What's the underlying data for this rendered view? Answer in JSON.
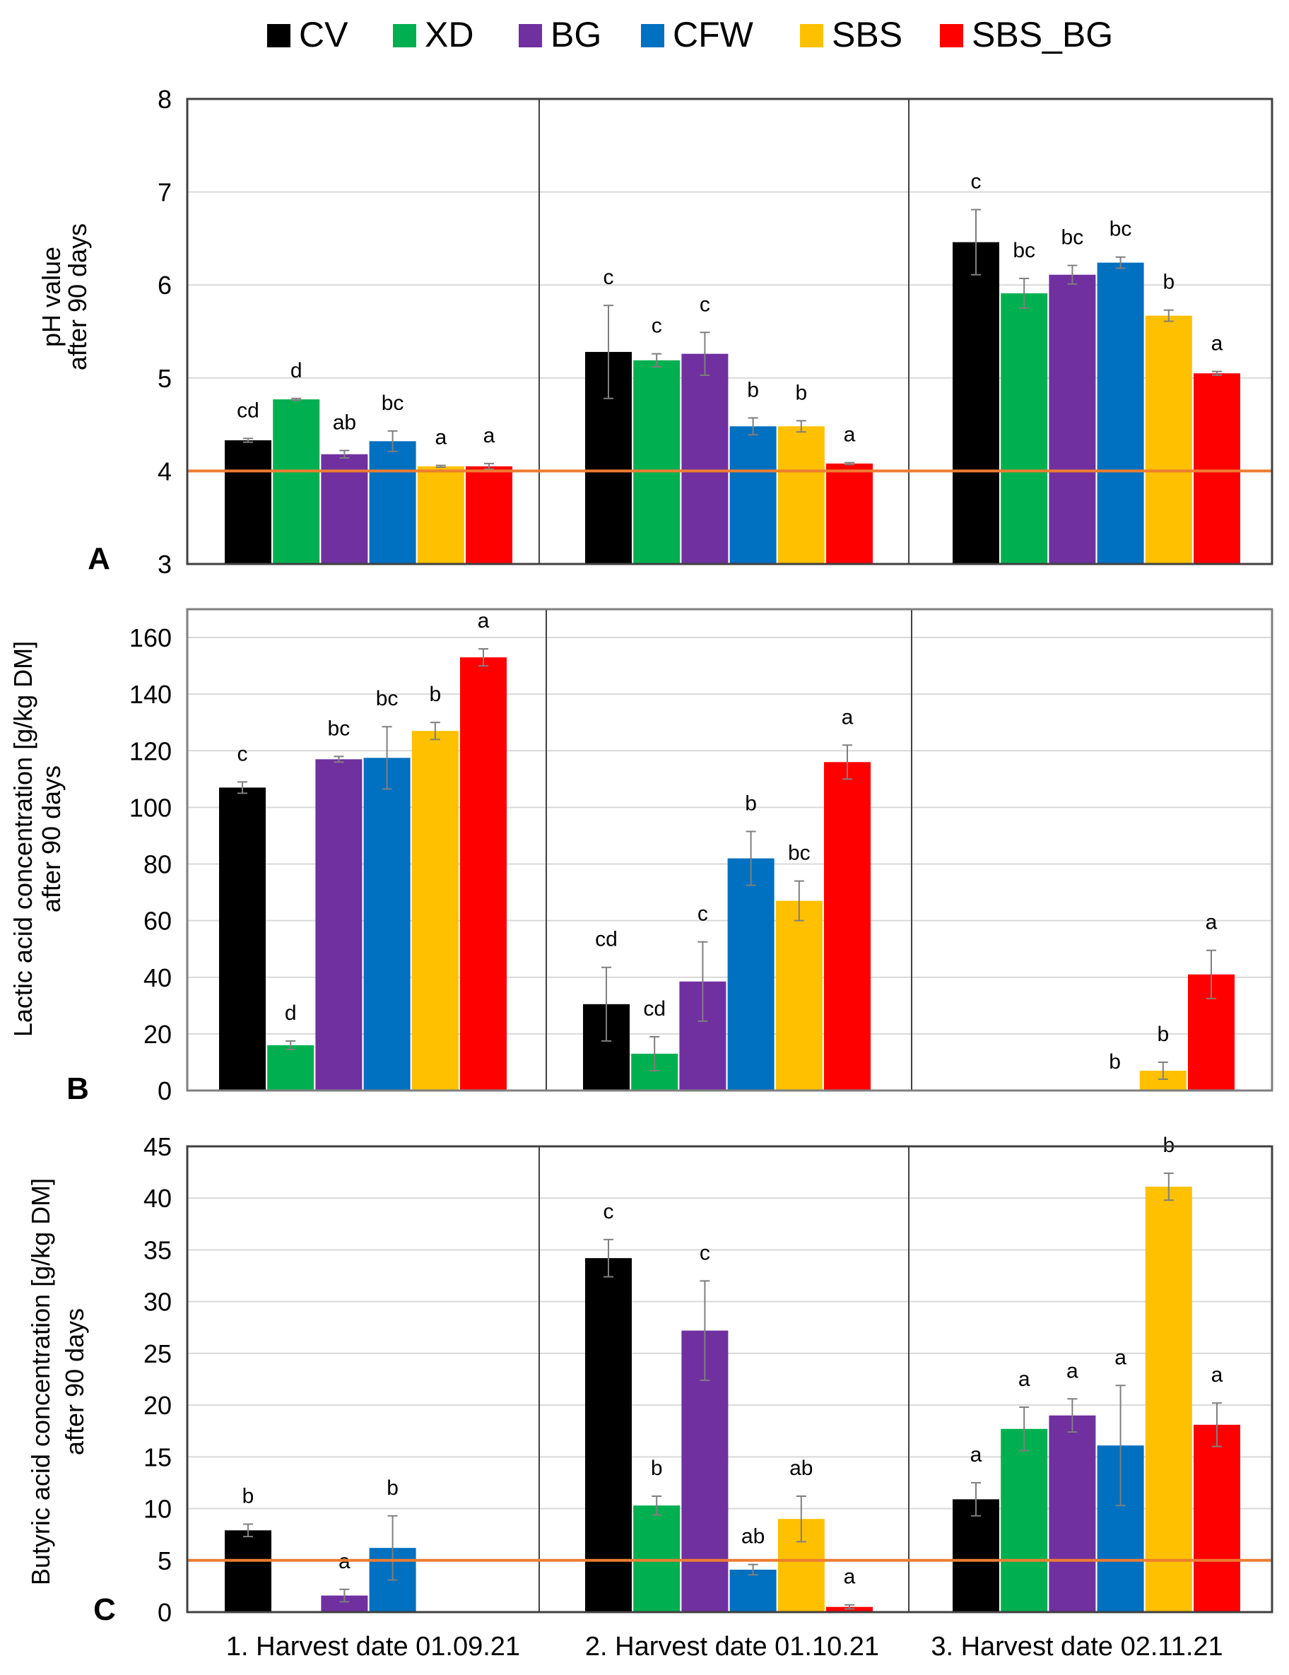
{
  "legend": [
    {
      "name": "CV",
      "color": "#000000"
    },
    {
      "name": "XD",
      "color": "#00b050"
    },
    {
      "name": "BG",
      "color": "#7030a0"
    },
    {
      "name": "CFW",
      "color": "#0070c0"
    },
    {
      "name": "SBS",
      "color": "#ffc000"
    },
    {
      "name": "SBS_BG",
      "color": "#ff0000"
    }
  ],
  "reference_line_color": "#ed7d31",
  "chart_data": [
    {
      "type": "bar",
      "panel_label": "A",
      "ylabel": [
        "pH value",
        "after 90 days"
      ],
      "ylim": [
        3,
        8
      ],
      "yticks": [
        "3",
        "4",
        "5",
        "6",
        "7",
        "8"
      ],
      "categories": [
        "1. Harvest date 01.09.21",
        "2. Harvest date 01.10.21",
        "3. Harvest date 02.11.21"
      ],
      "show_xlabels": false,
      "reference_line": 4,
      "series": [
        {
          "name": "CV",
          "values": [
            4.33,
            5.28,
            6.46
          ],
          "errors": [
            0.02,
            0.5,
            0.35
          ],
          "letters": [
            "cd",
            "c",
            "c"
          ]
        },
        {
          "name": "XD",
          "values": [
            4.77,
            5.19,
            5.91
          ],
          "errors": [
            0.01,
            0.07,
            0.16
          ],
          "letters": [
            "d",
            "c",
            "bc"
          ]
        },
        {
          "name": "BG",
          "values": [
            4.18,
            5.26,
            6.11
          ],
          "errors": [
            0.04,
            0.23,
            0.1
          ],
          "letters": [
            "ab",
            "c",
            "bc"
          ]
        },
        {
          "name": "CFW",
          "values": [
            4.32,
            4.48,
            6.24
          ],
          "errors": [
            0.11,
            0.09,
            0.06
          ],
          "letters": [
            "bc",
            "b",
            "bc"
          ]
        },
        {
          "name": "SBS",
          "values": [
            4.05,
            4.48,
            5.67
          ],
          "errors": [
            0.01,
            0.06,
            0.06
          ],
          "letters": [
            "a",
            "b",
            "b"
          ]
        },
        {
          "name": "SBS_BG",
          "values": [
            4.05,
            4.08,
            5.05
          ],
          "errors": [
            0.03,
            0.01,
            0.02
          ],
          "letters": [
            "a",
            "a",
            "a"
          ]
        }
      ]
    },
    {
      "type": "bar",
      "panel_label": "B",
      "ylabel": [
        "Lactic acid concentration [g/kg DM]",
        "after 90 days"
      ],
      "ylim": [
        0,
        170
      ],
      "yticks": [
        "0",
        "20",
        "40",
        "60",
        "80",
        "100",
        "120",
        "140",
        "160"
      ],
      "categories": [
        "1. Harvest date 01.09.21",
        "2. Harvest date 01.10.21",
        "3. Harvest date 02.11.21"
      ],
      "show_xlabels": false,
      "reference_line": null,
      "series": [
        {
          "name": "CV",
          "values": [
            107,
            30.5,
            0
          ],
          "errors": [
            2,
            13,
            0
          ],
          "letters": [
            "c",
            "cd",
            ""
          ]
        },
        {
          "name": "XD",
          "values": [
            16,
            13,
            0
          ],
          "errors": [
            1.5,
            6,
            0
          ],
          "letters": [
            "d",
            "cd",
            ""
          ]
        },
        {
          "name": "BG",
          "values": [
            117,
            38.5,
            0
          ],
          "errors": [
            1,
            14,
            0
          ],
          "letters": [
            "bc",
            "c",
            ""
          ]
        },
        {
          "name": "CFW",
          "values": [
            117.5,
            82,
            0.3
          ],
          "errors": [
            11,
            9.5,
            0
          ],
          "letters": [
            "bc",
            "b",
            "b"
          ]
        },
        {
          "name": "SBS",
          "values": [
            127,
            67,
            7
          ],
          "errors": [
            3,
            7,
            3
          ],
          "letters": [
            "b",
            "bc",
            "b"
          ]
        },
        {
          "name": "SBS_BG",
          "values": [
            153,
            116,
            41
          ],
          "errors": [
            3,
            6,
            8.5
          ],
          "letters": [
            "a",
            "a",
            "a"
          ]
        }
      ]
    },
    {
      "type": "bar",
      "panel_label": "C",
      "ylabel": [
        "Butyric acid concentration [g/kg DM]",
        "after 90 days"
      ],
      "ylim": [
        0,
        45
      ],
      "yticks": [
        "0",
        "5",
        "10",
        "15",
        "20",
        "25",
        "30",
        "35",
        "40",
        "45"
      ],
      "categories": [
        "1. Harvest date 01.09.21",
        "2. Harvest date 01.10.21",
        "3. Harvest date 02.11.21"
      ],
      "show_xlabels": true,
      "reference_line": 5,
      "series": [
        {
          "name": "CV",
          "values": [
            7.9,
            34.2,
            10.9
          ],
          "errors": [
            0.6,
            1.8,
            1.6
          ],
          "letters": [
            "b",
            "c",
            "a"
          ]
        },
        {
          "name": "XD",
          "values": [
            0,
            10.3,
            17.7
          ],
          "errors": [
            0,
            0.9,
            2.1
          ],
          "letters": [
            "",
            "b",
            "a"
          ]
        },
        {
          "name": "BG",
          "values": [
            1.6,
            27.2,
            19
          ],
          "errors": [
            0.6,
            4.8,
            1.6
          ],
          "letters": [
            "a",
            "c",
            "a"
          ]
        },
        {
          "name": "CFW",
          "values": [
            6.2,
            4.1,
            16.1
          ],
          "errors": [
            3.1,
            0.5,
            5.8
          ],
          "letters": [
            "b",
            "ab",
            "a"
          ]
        },
        {
          "name": "SBS",
          "values": [
            0,
            9,
            41.1
          ],
          "errors": [
            0,
            2.2,
            1.3
          ],
          "letters": [
            "",
            "ab",
            "b"
          ]
        },
        {
          "name": "SBS_BG",
          "values": [
            0,
            0.5,
            18.1
          ],
          "errors": [
            0,
            0.2,
            2.1
          ],
          "letters": [
            "",
            "a",
            "a"
          ]
        }
      ]
    }
  ]
}
